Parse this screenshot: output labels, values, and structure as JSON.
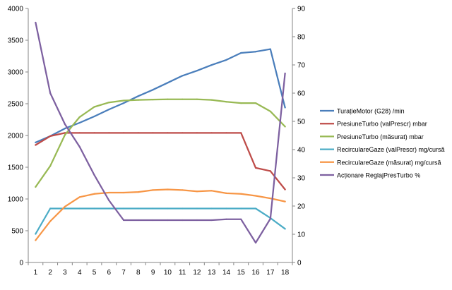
{
  "chart_data": {
    "type": "line",
    "x": [
      1,
      2,
      3,
      4,
      5,
      6,
      7,
      8,
      9,
      10,
      11,
      12,
      13,
      14,
      15,
      16,
      17,
      18
    ],
    "yLeft": {
      "min": 0,
      "max": 4000,
      "ticks": [
        "0",
        "500",
        "1000",
        "1500",
        "2000",
        "2500",
        "3000",
        "3500",
        "4000"
      ]
    },
    "yRight": {
      "min": 0,
      "max": 90,
      "ticks": [
        "0",
        "10",
        "20",
        "30",
        "40",
        "50",
        "60",
        "70",
        "80",
        "90"
      ]
    },
    "grid": false,
    "legend_position": "right",
    "series": [
      {
        "name": "TurațieMotor (G28)  /min",
        "color": "#4a7ebb",
        "axis": "left",
        "values": [
          1890,
          1990,
          2110,
          2200,
          2300,
          2410,
          2510,
          2620,
          2720,
          2830,
          2940,
          3020,
          3110,
          3190,
          3300,
          3320,
          3360,
          2440
        ]
      },
      {
        "name": "PresiuneTurbo (valPrescr)  mbar",
        "color": "#be4b48",
        "axis": "left",
        "values": [
          1850,
          1990,
          2040,
          2040,
          2040,
          2040,
          2040,
          2040,
          2040,
          2040,
          2040,
          2040,
          2040,
          2040,
          2040,
          1490,
          1440,
          1150
        ]
      },
      {
        "name": "PresiuneTurbo (măsurat)  mbar",
        "color": "#98b954",
        "axis": "left",
        "values": [
          1190,
          1520,
          2010,
          2290,
          2450,
          2520,
          2550,
          2560,
          2565,
          2570,
          2570,
          2570,
          2560,
          2530,
          2510,
          2510,
          2380,
          2140
        ]
      },
      {
        "name": "RecirculareGaze (valPrescr)  mg/cursă",
        "color": "#4bacc6",
        "axis": "left",
        "values": [
          450,
          850,
          850,
          850,
          850,
          850,
          850,
          850,
          850,
          850,
          850,
          850,
          850,
          850,
          850,
          850,
          700,
          530
        ]
      },
      {
        "name": "RecirculareGaze (măsurat)  mg/cursă",
        "color": "#f79646",
        "axis": "left",
        "values": [
          350,
          650,
          880,
          1030,
          1080,
          1100,
          1100,
          1110,
          1140,
          1150,
          1140,
          1120,
          1130,
          1090,
          1080,
          1050,
          1010,
          960
        ]
      },
      {
        "name": "Acționare ReglajPresTurbo  %",
        "color": "#7d60a0",
        "axis": "right",
        "values": [
          85,
          60,
          49,
          41,
          31,
          22,
          15,
          15,
          15,
          15,
          15,
          15,
          15,
          15.3,
          15.3,
          7,
          15.5,
          67
        ]
      }
    ]
  }
}
